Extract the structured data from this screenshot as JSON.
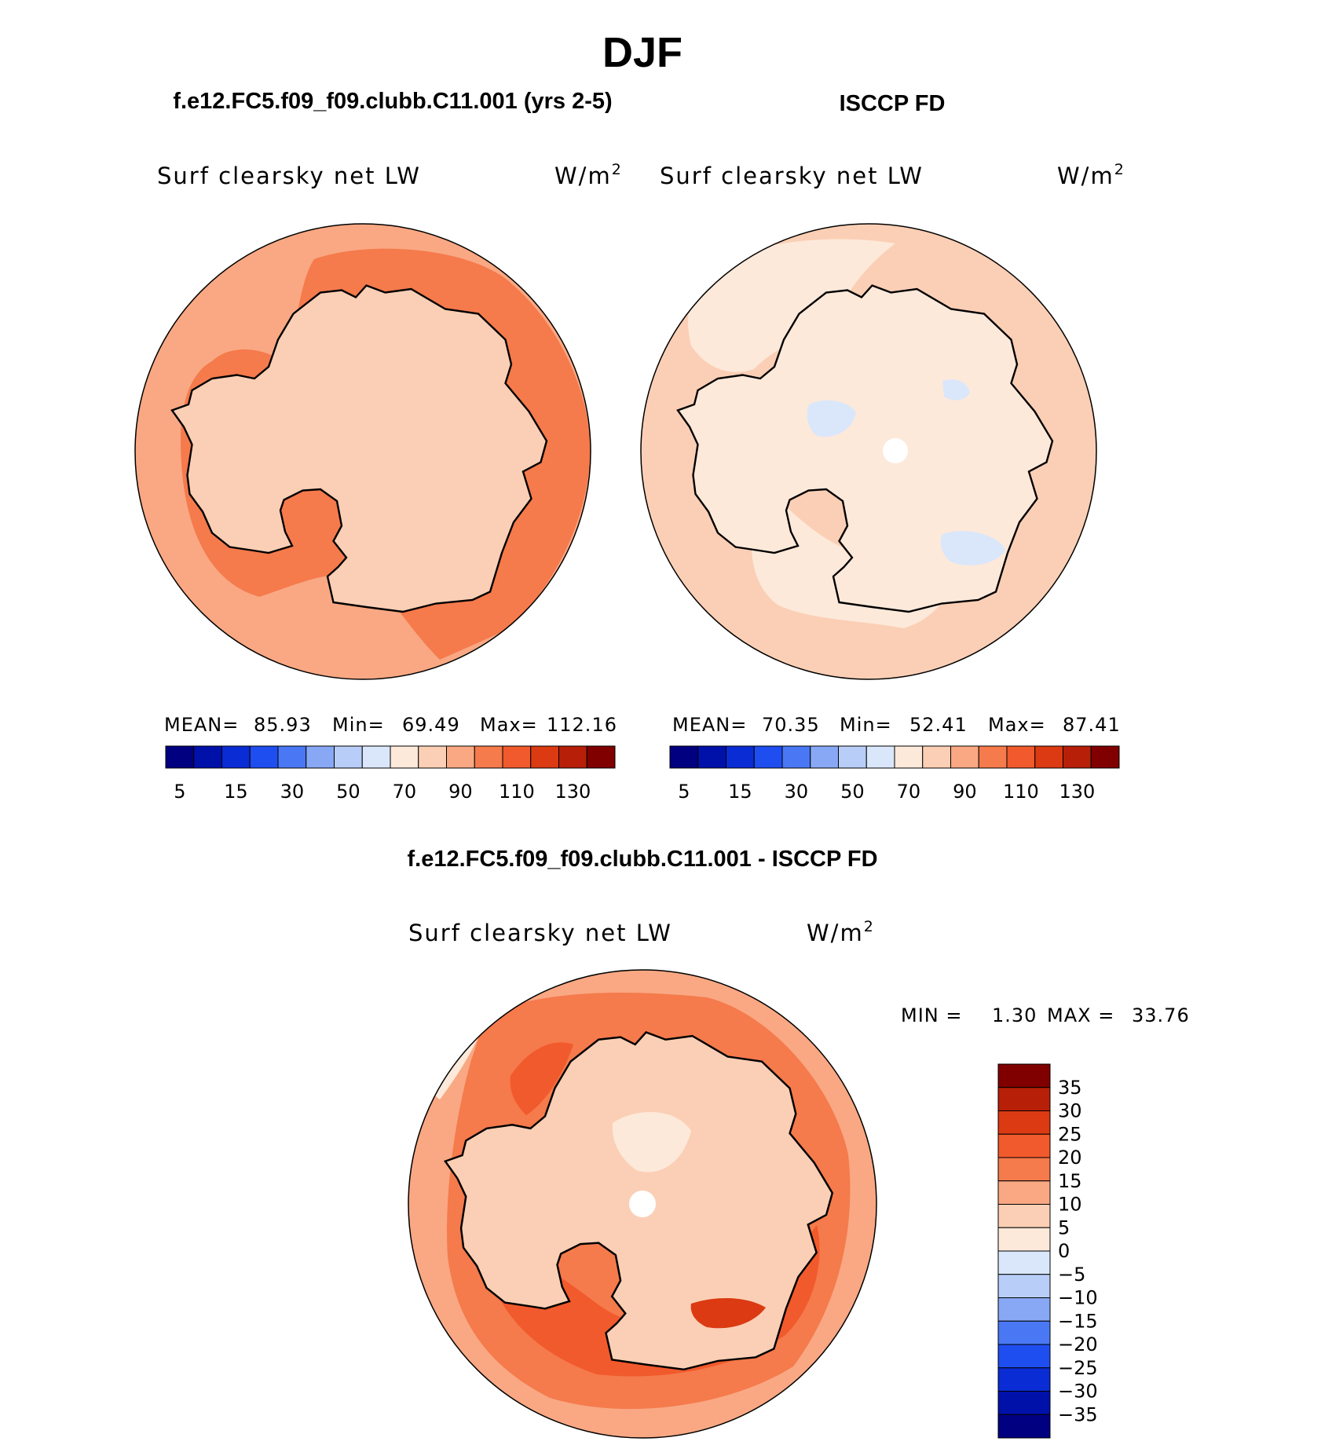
{
  "season": "DJF",
  "panel_model": {
    "title": "f.e12.FC5.f09_f09.clubb.C11.001 (yrs 2-5)",
    "variable": "Surf clearsky net LW",
    "units": "W/m",
    "units_sup": "2",
    "stats": {
      "mean_label": "MEAN=",
      "mean": "85.93",
      "min_label": "Min=",
      "min": "69.49",
      "max_label": "Max=",
      "max": "112.16"
    }
  },
  "panel_obs": {
    "title": "ISCCP FD",
    "variable": "Surf clearsky net LW",
    "units": "W/m",
    "units_sup": "2",
    "stats": {
      "mean_label": "MEAN=",
      "mean": "70.35",
      "min_label": "Min=",
      "min": "52.41",
      "max_label": "Max=",
      "max": "87.41"
    }
  },
  "panel_diff": {
    "title": "f.e12.FC5.f09_f09.clubb.C11.001 - ISCCP FD",
    "variable": "Surf clearsky net LW",
    "units": "W/m",
    "units_sup": "2",
    "minmax": {
      "min_label": "MIN =",
      "min": "1.30",
      "max_label": "MAX =",
      "max": "33.76"
    }
  },
  "colorbar_abs": {
    "colors": [
      "#000080",
      "#0011aa",
      "#0a2cd4",
      "#1f4ef0",
      "#4a78f5",
      "#88a8f5",
      "#b8cdf7",
      "#dae7fb",
      "#fde9da",
      "#fbcfb5",
      "#f9a883",
      "#f57a4c",
      "#f15a2c",
      "#db3a12",
      "#b81f08",
      "#800000"
    ],
    "labels": [
      "5",
      "15",
      "30",
      "50",
      "70",
      "90",
      "110",
      "130"
    ]
  },
  "colorbar_diff": {
    "colors": [
      "#800000",
      "#b81f08",
      "#db3a12",
      "#f15a2c",
      "#f57a4c",
      "#f9a883",
      "#fbcfb5",
      "#fde9da",
      "#dae7fb",
      "#b8cdf7",
      "#88a8f5",
      "#4a78f5",
      "#1f4ef0",
      "#0a2cd4",
      "#0011aa",
      "#000080"
    ],
    "labels": [
      "35",
      "30",
      "25",
      "20",
      "15",
      "10",
      "5",
      "0",
      "−5",
      "−10",
      "−15",
      "−20",
      "−25",
      "−30",
      "−35"
    ]
  },
  "map_colors": {
    "model_bg": "#f9a883",
    "model_band": "#f57a4c",
    "model_land": "#fbcfb5",
    "model_hot": "#f15a2c",
    "obs_bg": "#fbcfb5",
    "obs_light": "#fde9da",
    "obs_neg": "#dae7fb",
    "diff_bg": "#f57a4c",
    "diff_outer": "#f9a883",
    "diff_hot": "#f15a2c",
    "diff_max": "#db3a12",
    "diff_land": "#fbcfb5",
    "diff_pale": "#fde9da"
  }
}
